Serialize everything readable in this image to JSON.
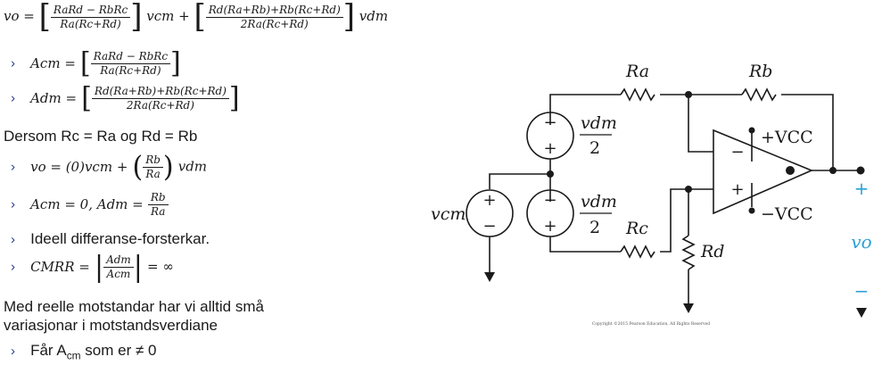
{
  "eq1": {
    "lhs": "vo =",
    "frac1_num": "RaRd − RbRc",
    "frac1_den": "Ra(Rc+Rd)",
    "term1": "vcm +",
    "frac2_num": "Rd(Ra+Rb)+Rb(Rc+Rd)",
    "frac2_den": "2Ra(Rc+Rd)",
    "term2": "vdm"
  },
  "acm": {
    "lhs": "Acm =",
    "num": "RaRd − RbRc",
    "den": "Ra(Rc+Rd)"
  },
  "adm": {
    "lhs": "Adm =",
    "num": "Rd(Ra+Rb)+Rb(Rc+Rd)",
    "den": "2Ra(Rc+Rd)"
  },
  "condition": "Dersom Rc = Ra og Rd = Rb",
  "bullets": {
    "vo_simpl_a": "vo = (0)vcm +",
    "vo_simpl_num": "Rb",
    "vo_simpl_den": "Ra",
    "vo_simpl_b": "vdm",
    "acm_zero": "Acm = 0,   Adm =",
    "adm_num": "Rb",
    "adm_den": "Ra",
    "ideal": "Ideell differanse-forsterkar.",
    "cmrr_lhs": "CMRR =",
    "cmrr_num": "Adm",
    "cmrr_den": "Acm",
    "cmrr_rhs": "= ∞"
  },
  "real_line1": "Med reelle motstandar har vi alltid små",
  "real_line2": "variasjonar i motstandsverdiane",
  "last_bullet_a": "Får A",
  "last_bullet_sub": "cm",
  "last_bullet_b": " som er ≠ 0",
  "bullet_glyph": "›",
  "circuit": {
    "Ra": "Ra",
    "Rb": "Rb",
    "Rc": "Rc",
    "Rd": "Rd",
    "vdm_num": "vdm",
    "vdm_den": "2",
    "vcm": "vcm",
    "vcc_pos": "+VCC",
    "vcc_neg": "−VCC",
    "vo": "vo",
    "plus": "+",
    "minus": "−",
    "copyright": "Copyright ©2015 Pearson Education, All Rights Reserved"
  },
  "colors": {
    "accent": "#2aa0d6",
    "bullet": "#2b3a8c"
  }
}
